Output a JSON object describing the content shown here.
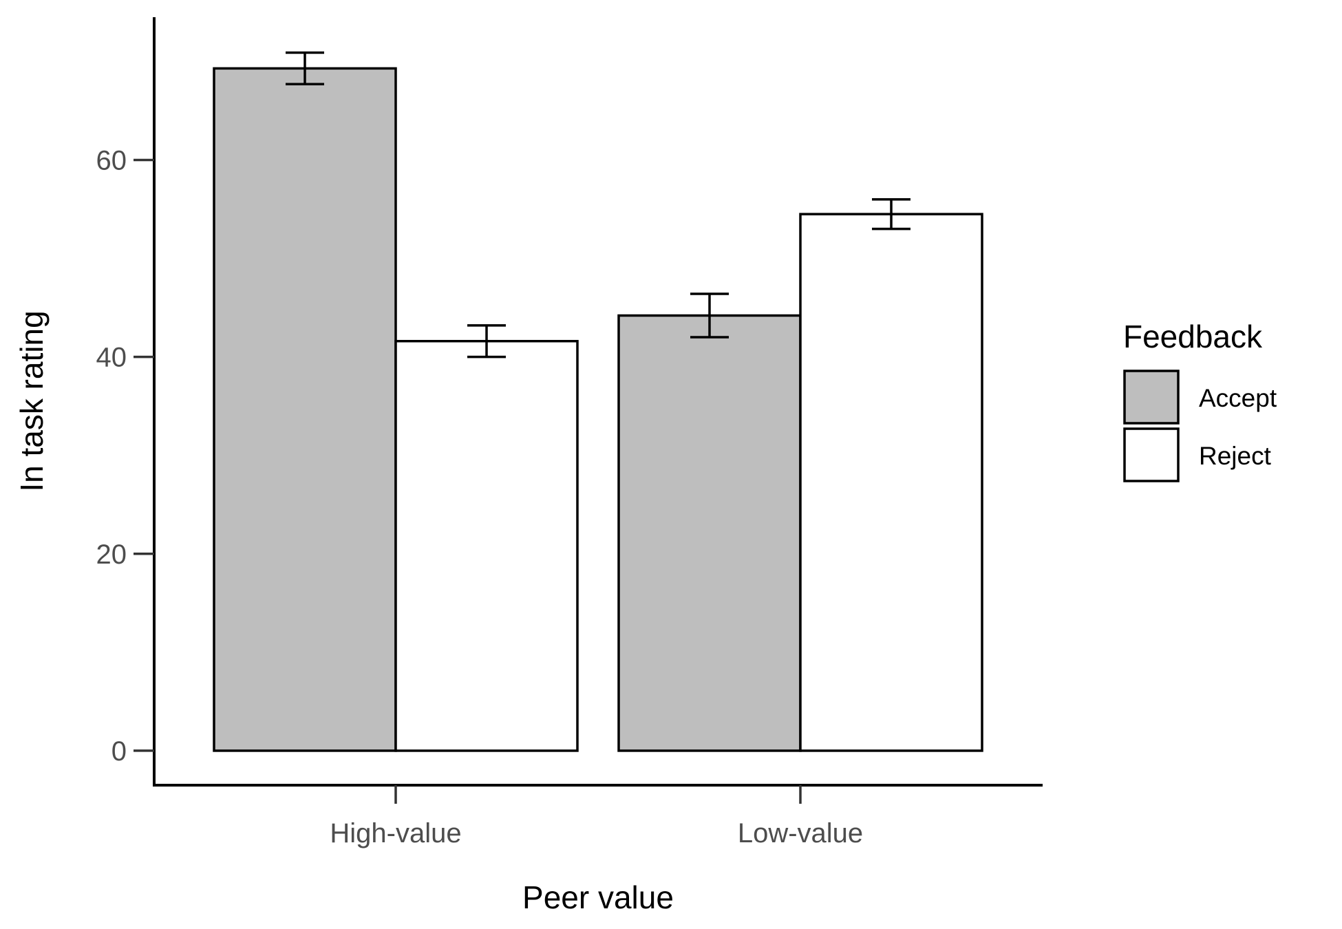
{
  "chart_data": {
    "type": "bar",
    "xlabel": "Peer value",
    "ylabel": "In task rating",
    "categories": [
      "High-value",
      "Low-value"
    ],
    "series": [
      {
        "name": "Accept",
        "values": [
          69.3,
          44.2
        ],
        "errors": [
          1.6,
          2.2
        ],
        "color": "#bebebe"
      },
      {
        "name": "Reject",
        "values": [
          41.6,
          54.5
        ],
        "errors": [
          1.6,
          1.5
        ],
        "color": "#ffffff"
      }
    ],
    "ylim": [
      -3.5,
      74.5
    ],
    "yticks": [
      0,
      20,
      40,
      60
    ],
    "legend": {
      "title": "Feedback",
      "position": "right"
    },
    "grid": false
  }
}
